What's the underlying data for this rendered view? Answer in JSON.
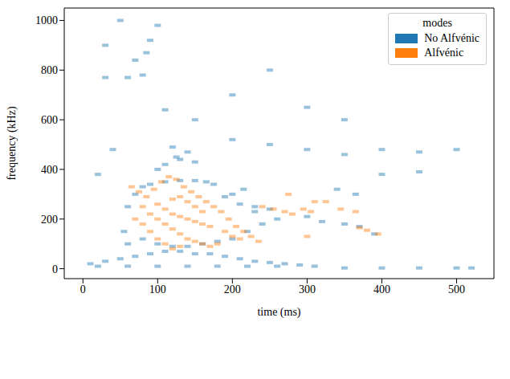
{
  "chart_data": {
    "type": "scatter",
    "x_label": "time (ms)",
    "y_label": "frequency (kHz)",
    "legend_title": "modes",
    "legend": "upper right",
    "marker": "square",
    "xlim": [
      -25,
      550
    ],
    "xticks": [
      0,
      100,
      200,
      300,
      400,
      500
    ],
    "ylim": [
      -40,
      1050
    ],
    "yticks": [
      0,
      200,
      400,
      600,
      800,
      1000
    ],
    "series": [
      {
        "name": "No Alfvénic",
        "color": "#1f77b4",
        "x": [
          10,
          30,
          50,
          70,
          90,
          110,
          130,
          150,
          170,
          190,
          210,
          230,
          250,
          270,
          290,
          310,
          350,
          400,
          450,
          500,
          520,
          20,
          60,
          100,
          140,
          180,
          220,
          260,
          55,
          60,
          70,
          80,
          90,
          110,
          130,
          150,
          165,
          175,
          60,
          80,
          100,
          120,
          140,
          160,
          180,
          200,
          220,
          240,
          260,
          250,
          230,
          210,
          190,
          200,
          215,
          230,
          100,
          110,
          120,
          125,
          130,
          140,
          150,
          300,
          320,
          350,
          370,
          390,
          340,
          365,
          40,
          60,
          80,
          85,
          90,
          100,
          70,
          150,
          200,
          250,
          300,
          350,
          400,
          450,
          500,
          30,
          30,
          20,
          400,
          450,
          200,
          300,
          350,
          250,
          110,
          50
        ],
        "values": [
          20,
          30,
          40,
          50,
          60,
          70,
          70,
          60,
          60,
          50,
          40,
          30,
          25,
          20,
          15,
          10,
          3,
          3,
          3,
          3,
          3,
          10,
          10,
          10,
          10,
          10,
          10,
          10,
          150,
          250,
          300,
          330,
          340,
          350,
          355,
          355,
          350,
          340,
          100,
          120,
          100,
          90,
          90,
          100,
          110,
          120,
          150,
          180,
          200,
          240,
          250,
          260,
          290,
          300,
          320,
          230,
          400,
          420,
          490,
          450,
          440,
          470,
          430,
          210,
          190,
          180,
          170,
          140,
          320,
          300,
          480,
          770,
          780,
          870,
          920,
          980,
          840,
          600,
          700,
          500,
          480,
          460,
          480,
          470,
          480,
          900,
          770,
          380,
          380,
          390,
          520,
          650,
          600,
          800,
          640,
          1000
        ]
      },
      {
        "name": "Alfvénic",
        "color": "#ff7f0e",
        "x": [
          65,
          75,
          85,
          95,
          105,
          115,
          125,
          135,
          145,
          155,
          165,
          175,
          185,
          195,
          205,
          215,
          225,
          235,
          80,
          90,
          100,
          110,
          120,
          130,
          140,
          150,
          160,
          170,
          180,
          90,
          100,
          110,
          120,
          130,
          100,
          110,
          120,
          130,
          140,
          150,
          160,
          170,
          120,
          130,
          140,
          150,
          160,
          70,
          80,
          190,
          200,
          210,
          240,
          255,
          270,
          280,
          295,
          305,
          310,
          325,
          345,
          365,
          370,
          380,
          395,
          300,
          275
        ],
        "values": [
          330,
          310,
          290,
          320,
          350,
          370,
          360,
          330,
          310,
          290,
          270,
          250,
          230,
          200,
          170,
          150,
          130,
          110,
          250,
          220,
          200,
          180,
          160,
          140,
          120,
          110,
          100,
          90,
          100,
          150,
          120,
          100,
          80,
          90,
          260,
          240,
          220,
          210,
          200,
          190,
          180,
          170,
          280,
          290,
          270,
          250,
          230,
          200,
          180,
          150,
          130,
          120,
          250,
          240,
          230,
          220,
          240,
          230,
          270,
          270,
          240,
          230,
          165,
          155,
          140,
          130,
          300
        ]
      }
    ]
  }
}
